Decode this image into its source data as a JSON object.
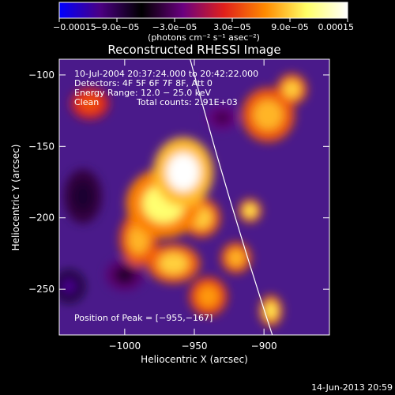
{
  "chart_data": {
    "type": "heatmap",
    "title": "Reconstructed RHESSI Image",
    "xlabel": "Heliocentric X (arcsec)",
    "ylabel": "Heliocentric Y (arcsec)",
    "xlim": [
      -1047,
      -853
    ],
    "ylim": [
      -282,
      -89
    ],
    "x_ticks": [
      -1000,
      -950,
      -900
    ],
    "x_tick_labels": [
      "−1000",
      "−950",
      "−900"
    ],
    "y_ticks": [
      -100,
      -150,
      -200,
      -250
    ],
    "y_tick_labels": [
      "−100",
      "−150",
      "−200",
      "−250"
    ],
    "colorbar": {
      "range": [
        -0.00015,
        0.00015
      ],
      "ticks": [
        -0.00015,
        -9e-05,
        -3e-05,
        3e-05,
        9e-05,
        0.00015
      ],
      "tick_labels": [
        "−0.00015",
        "−9.0e−05",
        "−3.0e−05",
        "3.0e−05",
        "9.0e−05",
        "0.00015"
      ],
      "units_label": "(photons cm⁻² s⁻¹ asec⁻²)",
      "colormap": [
        "#0000ff",
        "#4b0082",
        "#000000",
        "#6a0080",
        "#e0201b",
        "#ff8a00",
        "#ffff66",
        "#ffffff"
      ]
    },
    "annotations": {
      "time_range": "10-Jul-2004 20:37:24.000 to 20:42:22.000",
      "detectors": "Detectors: 4F 5F 6F 7F 8F, Att 0",
      "energy_range": "Energy Range: 12.0 − 25.0 keV",
      "method": "Clean",
      "total_counts": "Total counts: 2.91E+03",
      "peak_position": "Position of Peak = [−955,−167]"
    },
    "peak": {
      "x": -955,
      "y": -167
    },
    "limb_line": {
      "x": [
        -953,
        -894
      ],
      "y": [
        -89,
        -282
      ]
    },
    "intensity_features": [
      {
        "x": -958,
        "y": -168,
        "sx": 16,
        "sy": 18,
        "value": 0.00015
      },
      {
        "x": -972,
        "y": -190,
        "sx": 20,
        "sy": 18,
        "value": 0.00011
      },
      {
        "x": -945,
        "y": -200,
        "sx": 10,
        "sy": 10,
        "value": 9e-05
      },
      {
        "x": -990,
        "y": -215,
        "sx": 10,
        "sy": 14,
        "value": 8e-05
      },
      {
        "x": -965,
        "y": -232,
        "sx": 14,
        "sy": 10,
        "value": 9e-05
      },
      {
        "x": -920,
        "y": -228,
        "sx": 8,
        "sy": 8,
        "value": 8e-05
      },
      {
        "x": -940,
        "y": -255,
        "sx": 10,
        "sy": 10,
        "value": 7e-05
      },
      {
        "x": -910,
        "y": -195,
        "sx": 6,
        "sy": 6,
        "value": 0.0001
      },
      {
        "x": -897,
        "y": -128,
        "sx": 14,
        "sy": 14,
        "value": 8e-05
      },
      {
        "x": -880,
        "y": -110,
        "sx": 8,
        "sy": 8,
        "value": 9e-05
      },
      {
        "x": -895,
        "y": -265,
        "sx": 6,
        "sy": 8,
        "value": 0.0001
      },
      {
        "x": -1025,
        "y": -120,
        "sx": 10,
        "sy": 8,
        "value": 4e-05
      },
      {
        "x": -1030,
        "y": -185,
        "sx": 10,
        "sy": 14,
        "value": -8e-05
      },
      {
        "x": -1040,
        "y": -248,
        "sx": 8,
        "sy": 8,
        "value": -0.00011
      },
      {
        "x": -1000,
        "y": -240,
        "sx": 10,
        "sy": 8,
        "value": -5e-05
      },
      {
        "x": -930,
        "y": -130,
        "sx": 8,
        "sy": 6,
        "value": -4e-05
      }
    ]
  },
  "footer": {
    "date": "14-Jun-2013 20:59"
  }
}
